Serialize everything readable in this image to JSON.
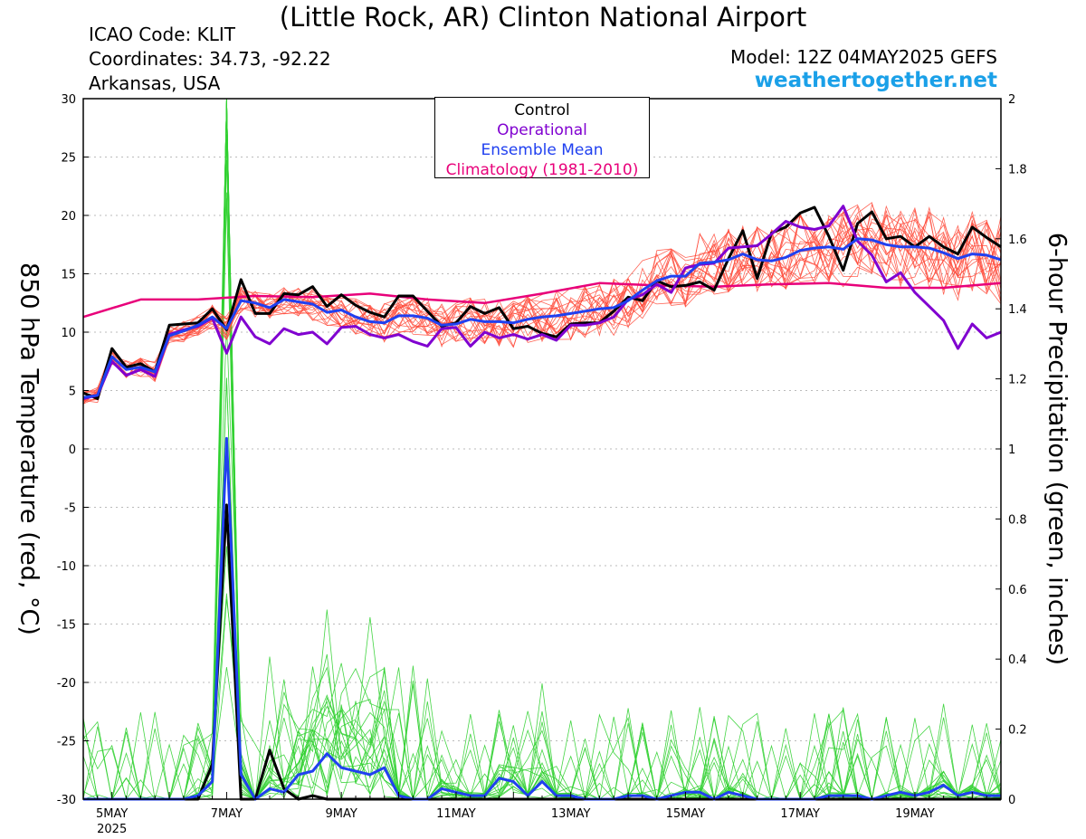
{
  "header": {
    "title": "(Little Rock, AR) Clinton National Airport",
    "icao": "ICAO Code: KLIT",
    "coordinates": "Coordinates: 34.73, -92.22",
    "region": "Arkansas, USA",
    "model": "Model: 12Z 04MAY2025 GEFS",
    "site": "weathertogether.net"
  },
  "legend": {
    "control": "Control",
    "operational": "Operational",
    "ensemble_mean": "Ensemble Mean",
    "climatology": "Climatology (1981-2010)"
  },
  "colors": {
    "control": "#000000",
    "operational": "#8000d0",
    "ensemble_mean": "#2040f0",
    "climatology": "#e8007a",
    "temp_members": "#ff4a3a",
    "precip_members": "#30d030",
    "site": "#1aa0e8",
    "grid": "#bbbbbb"
  },
  "chart_data": {
    "type": "line",
    "title": "(Little Rock, AR) Clinton National Airport",
    "ylabel": "850 hPa Temperature (red, °C)",
    "y2label": "6-hour Precipitation (green, inches)",
    "xlabel": "",
    "x_units": "hours since 12Z 04MAY2025",
    "xlim": [
      0,
      384
    ],
    "ylim": [
      -30,
      30
    ],
    "y2lim": [
      0,
      2
    ],
    "grid": true,
    "legend_position": "top-center",
    "x_ticks": [
      {
        "x": 12,
        "label": "5MAY",
        "sublabel": "2025"
      },
      {
        "x": 60,
        "label": "7MAY"
      },
      {
        "x": 108,
        "label": "9MAY"
      },
      {
        "x": 156,
        "label": "11MAY"
      },
      {
        "x": 204,
        "label": "13MAY"
      },
      {
        "x": 252,
        "label": "15MAY"
      },
      {
        "x": 300,
        "label": "17MAY"
      },
      {
        "x": 348,
        "label": "19MAY"
      }
    ],
    "y_ticks": [
      "30",
      "25",
      "20",
      "15",
      "10",
      "5",
      "0",
      "-5",
      "-10",
      "-15",
      "-20",
      "-25",
      "-30"
    ],
    "y2_ticks": [
      "2",
      "1.8",
      "1.6",
      "1.4",
      "1.2",
      "1",
      "0.8",
      "0.6",
      "0.4",
      "0.2",
      "0"
    ],
    "series": [
      {
        "name": "Climatology (1981-2010)",
        "axis": "left",
        "color": "#e8007a",
        "x": [
          0,
          24,
          48,
          72,
          96,
          120,
          144,
          168,
          192,
          216,
          240,
          264,
          288,
          312,
          336,
          360,
          384
        ],
        "values": [
          11.3,
          12.8,
          12.8,
          13.1,
          13.0,
          13.3,
          12.8,
          12.5,
          13.3,
          14.2,
          14.0,
          13.9,
          14.1,
          14.2,
          13.8,
          13.8,
          14.2
        ]
      },
      {
        "name": "Control",
        "axis": "left",
        "color": "#000000",
        "x": [
          0,
          6,
          12,
          18,
          24,
          30,
          36,
          42,
          48,
          54,
          60,
          66,
          72,
          78,
          84,
          90,
          96,
          102,
          108,
          114,
          120,
          126,
          132,
          138,
          144,
          150,
          156,
          162,
          168,
          174,
          180,
          186,
          192,
          198,
          204,
          210,
          216,
          222,
          228,
          234,
          240,
          246,
          252,
          258,
          264,
          270,
          276,
          282,
          288,
          294,
          300,
          306,
          312,
          318,
          324,
          330,
          336,
          342,
          348,
          354,
          360,
          366,
          372,
          378,
          384
        ],
        "values": [
          4.8,
          4.3,
          8.6,
          7.0,
          7.3,
          6.6,
          10.6,
          10.7,
          10.8,
          12.0,
          10.2,
          14.5,
          11.6,
          11.6,
          13.3,
          13.2,
          13.9,
          12.2,
          13.2,
          12.3,
          11.7,
          11.3,
          13.1,
          13.1,
          11.8,
          10.5,
          10.8,
          12.2,
          11.6,
          12.1,
          10.3,
          10.5,
          9.9,
          9.6,
          10.7,
          10.8,
          10.8,
          11.8,
          13.0,
          12.7,
          14.4,
          13.9,
          14.0,
          14.3,
          13.6,
          16.3,
          18.7,
          14.6,
          18.5,
          19.0,
          20.2,
          20.7,
          18.2,
          15.3,
          19.3,
          20.3,
          18.0,
          18.2,
          17.3,
          18.2,
          17.3,
          16.7,
          19.0,
          18.1,
          17.3
        ]
      },
      {
        "name": "Operational",
        "axis": "left",
        "color": "#8000d0",
        "x": [
          0,
          6,
          12,
          18,
          24,
          30,
          36,
          42,
          48,
          54,
          60,
          66,
          72,
          78,
          84,
          90,
          96,
          102,
          108,
          114,
          120,
          126,
          132,
          138,
          144,
          150,
          156,
          162,
          168,
          174,
          180,
          186,
          192,
          198,
          204,
          210,
          216,
          222,
          228,
          234,
          240,
          246,
          252,
          258,
          264,
          270,
          276,
          282,
          288,
          294,
          300,
          306,
          312,
          318,
          324,
          330,
          336,
          342,
          348,
          354,
          360,
          366,
          372,
          378,
          384
        ],
        "values": [
          4.3,
          4.6,
          7.5,
          6.3,
          6.8,
          6.2,
          9.8,
          10.2,
          10.5,
          11.2,
          8.2,
          11.3,
          9.6,
          9.0,
          10.3,
          9.8,
          10.0,
          9.0,
          10.4,
          10.5,
          9.8,
          9.5,
          9.8,
          9.2,
          8.8,
          10.3,
          10.4,
          8.8,
          10.0,
          9.5,
          9.8,
          9.4,
          9.8,
          9.3,
          10.6,
          10.6,
          10.8,
          11.3,
          12.8,
          13.2,
          14.1,
          13.4,
          15.5,
          15.8,
          15.9,
          17.2,
          17.3,
          17.4,
          18.4,
          19.5,
          19.0,
          18.8,
          19.1,
          20.8,
          17.8,
          16.6,
          14.3,
          15.1,
          13.4,
          12.2,
          11.0,
          8.6,
          10.7,
          9.5,
          10.0
        ]
      },
      {
        "name": "Ensemble Mean",
        "axis": "left",
        "color": "#2040f0",
        "x": [
          0,
          6,
          12,
          18,
          24,
          30,
          36,
          42,
          48,
          54,
          60,
          66,
          72,
          78,
          84,
          90,
          96,
          102,
          108,
          114,
          120,
          126,
          132,
          138,
          144,
          150,
          156,
          162,
          168,
          174,
          180,
          186,
          192,
          198,
          204,
          210,
          216,
          222,
          228,
          234,
          240,
          246,
          252,
          258,
          264,
          270,
          276,
          282,
          288,
          294,
          300,
          306,
          312,
          318,
          324,
          330,
          336,
          342,
          348,
          354,
          360,
          366,
          372,
          378,
          384
        ],
        "values": [
          4.4,
          4.6,
          7.9,
          6.8,
          7.0,
          6.6,
          9.7,
          10.1,
          10.6,
          11.3,
          10.3,
          12.7,
          12.5,
          12.1,
          12.8,
          12.6,
          12.4,
          11.7,
          11.9,
          11.3,
          10.9,
          10.8,
          11.4,
          11.4,
          11.2,
          10.6,
          10.7,
          11.1,
          10.9,
          10.9,
          10.8,
          11.1,
          11.3,
          11.4,
          11.6,
          11.8,
          12.0,
          12.1,
          12.7,
          13.6,
          14.4,
          14.8,
          14.8,
          15.9,
          16.0,
          16.2,
          16.7,
          16.2,
          16.1,
          16.4,
          17.0,
          17.2,
          17.3,
          17.1,
          18.0,
          17.9,
          17.5,
          17.3,
          17.3,
          17.2,
          16.8,
          16.3,
          16.7,
          16.6,
          16.2
        ]
      },
      {
        "name": "Control precipitation",
        "axis": "right",
        "color": "#000000",
        "x": [
          0,
          6,
          12,
          18,
          24,
          30,
          36,
          42,
          48,
          54,
          60,
          66,
          72,
          78,
          84,
          90,
          96,
          102,
          108,
          114,
          120,
          126,
          132,
          138,
          144,
          150,
          156,
          162,
          168,
          174,
          180,
          186,
          192,
          198,
          204,
          210,
          216,
          222,
          228,
          234,
          240,
          246,
          252,
          258,
          264,
          270,
          276,
          282,
          288,
          294,
          300,
          306,
          312,
          318,
          324,
          330,
          336,
          342,
          348,
          354,
          360,
          366,
          372,
          378,
          384
        ],
        "values": [
          0,
          0,
          0,
          0,
          0,
          0,
          0,
          0,
          0,
          0.1,
          0.84,
          0,
          0,
          0.14,
          0.03,
          0,
          0.01,
          0,
          0,
          0,
          0,
          0,
          0,
          0,
          0,
          0,
          0,
          0,
          0,
          0,
          0,
          0,
          0,
          0,
          0,
          0,
          0,
          0,
          0,
          0,
          0,
          0,
          0,
          0,
          0,
          0,
          0,
          0,
          0,
          0,
          0,
          0,
          0,
          0,
          0,
          0,
          0,
          0,
          0,
          0,
          0,
          0,
          0,
          0,
          0
        ]
      },
      {
        "name": "Ensemble mean precipitation",
        "axis": "right",
        "color": "#2040f0",
        "x": [
          0,
          6,
          12,
          18,
          24,
          30,
          36,
          42,
          48,
          54,
          60,
          66,
          72,
          78,
          84,
          90,
          96,
          102,
          108,
          114,
          120,
          126,
          132,
          138,
          144,
          150,
          156,
          162,
          168,
          174,
          180,
          186,
          192,
          198,
          204,
          210,
          216,
          222,
          228,
          234,
          240,
          246,
          252,
          258,
          264,
          270,
          276,
          282,
          288,
          294,
          300,
          306,
          312,
          318,
          324,
          330,
          336,
          342,
          348,
          354,
          360,
          366,
          372,
          378,
          384
        ],
        "values": [
          0,
          0,
          0,
          0,
          0,
          0,
          0,
          0,
          0.01,
          0.05,
          1.03,
          0.07,
          0,
          0.03,
          0.02,
          0.07,
          0.08,
          0.13,
          0.09,
          0.08,
          0.07,
          0.09,
          0.01,
          0,
          0,
          0.03,
          0.02,
          0.01,
          0.01,
          0.06,
          0.05,
          0.01,
          0.05,
          0.01,
          0.01,
          0,
          0,
          0,
          0.01,
          0.01,
          0,
          0.01,
          0.02,
          0.02,
          0,
          0.02,
          0.01,
          0,
          0,
          0,
          0,
          0,
          0.01,
          0.01,
          0.01,
          0,
          0.01,
          0.02,
          0.01,
          0.02,
          0.04,
          0.01,
          0.02,
          0.01,
          0.01
        ]
      }
    ]
  }
}
